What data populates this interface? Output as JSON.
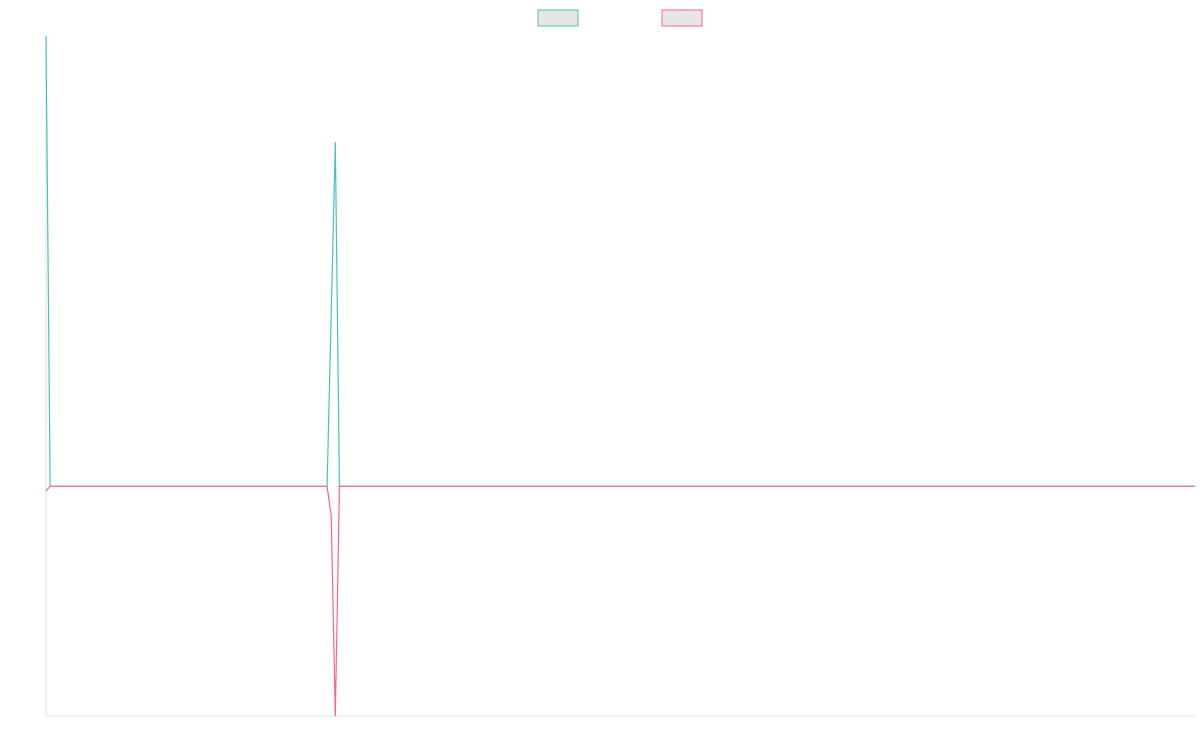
{
  "chart_data": {
    "type": "line",
    "x": [
      0,
      1,
      68,
      69,
      70,
      71,
      278
    ],
    "series": [
      {
        "color": "#4bc0c0",
        "values": [
          100,
          0,
          0,
          38,
          76.5,
          0,
          0
        ]
      },
      {
        "color": "#ff6384",
        "values": [
          -1,
          0,
          0,
          -6.4,
          -51,
          0,
          0
        ]
      }
    ],
    "xlim": [
      0,
      278
    ],
    "ylim": [
      -51,
      100
    ]
  }
}
